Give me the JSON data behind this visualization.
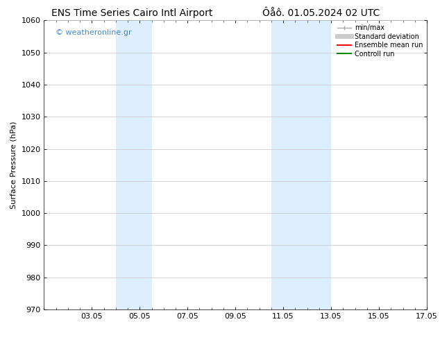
{
  "title_left": "ENS Time Series Cairo Intl Airport",
  "title_right": "Ôåô. 01.05.2024 02 UTC",
  "ylabel": "Surface Pressure (hPa)",
  "ylim": [
    970,
    1060
  ],
  "yticks": [
    970,
    980,
    990,
    1000,
    1010,
    1020,
    1030,
    1040,
    1050,
    1060
  ],
  "xtick_labels": [
    "03.05",
    "05.05",
    "07.05",
    "09.05",
    "11.05",
    "13.05",
    "15.05",
    "17.05"
  ],
  "xtick_positions": [
    2,
    4,
    6,
    8,
    10,
    12,
    14,
    16
  ],
  "xlim": [
    0,
    16
  ],
  "shaded_bands": [
    {
      "x_start": 3.0,
      "x_end": 4.5
    },
    {
      "x_start": 9.5,
      "x_end": 12.0
    }
  ],
  "shaded_color": "#ddeeff",
  "watermark": "© weatheronline.gr",
  "watermark_color": "#4488cc",
  "legend_entries": [
    {
      "label": "min/max",
      "color": "#aaaaaa",
      "lw": 1.0
    },
    {
      "label": "Standard deviation",
      "color": "#cccccc",
      "lw": 5
    },
    {
      "label": "Ensemble mean run",
      "color": "#ff0000",
      "lw": 1.5
    },
    {
      "label": "Controll run",
      "color": "#008800",
      "lw": 1.5
    }
  ],
  "bg_color": "#ffffff",
  "grid_color": "#cccccc",
  "title_fontsize": 10,
  "ylabel_fontsize": 8,
  "tick_fontsize": 8,
  "legend_fontsize": 7,
  "watermark_fontsize": 8
}
